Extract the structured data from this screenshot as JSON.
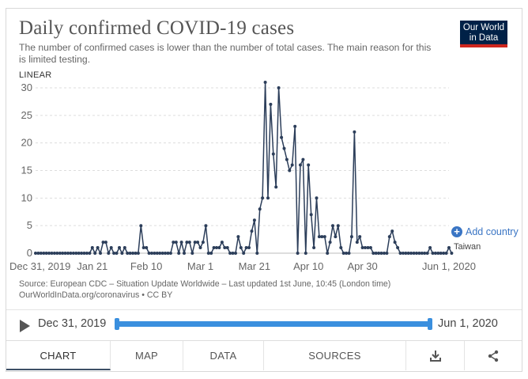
{
  "header": {
    "title": "Daily confirmed COVID-19 cases",
    "subtitle": "The number of confirmed cases is lower than the number of total cases. The main reason for this is limited testing.",
    "logo_line1": "Our World",
    "logo_line2": "in Data",
    "scale": "LINEAR"
  },
  "controls": {
    "add_country": "Add country"
  },
  "source": {
    "line1": "Source: European CDC – Situation Update Worldwide – Last updated 1st June, 10:45 (London time)",
    "line2": "OurWorldInData.org/coronavirus • CC BY"
  },
  "timeline": {
    "start": "Dec 31, 2019",
    "end": "Jun 1, 2020"
  },
  "tabs": [
    "CHART",
    "MAP",
    "DATA",
    "SOURCES"
  ],
  "colors": {
    "line": "#2c3e5a",
    "accent": "#3a8fde",
    "logo_bg": "#002147",
    "logo_bar": "#ce261e"
  },
  "chart_data": {
    "type": "line",
    "title": "Daily confirmed COVID-19 cases",
    "xlabel": "",
    "ylabel": "",
    "ylim": [
      0,
      30
    ],
    "yticks": [
      0,
      5,
      10,
      15,
      20,
      25,
      30
    ],
    "grid": true,
    "xtick_labels": [
      "Dec 31, 2019",
      "Jan 21",
      "Feb 10",
      "Mar 1",
      "Mar 21",
      "Apr 10",
      "Apr 30",
      "Jun 1, 2020"
    ],
    "xtick_days": [
      0,
      21,
      41,
      61,
      81,
      101,
      121,
      153
    ],
    "series": [
      {
        "name": "Taiwan",
        "x_start": "2019-12-31",
        "values": [
          0,
          0,
          0,
          0,
          0,
          0,
          0,
          0,
          0,
          0,
          0,
          0,
          0,
          0,
          0,
          0,
          0,
          0,
          0,
          0,
          0,
          1,
          0,
          1,
          0,
          2,
          2,
          0,
          1,
          0,
          0,
          1,
          0,
          1,
          0,
          0,
          0,
          0,
          0,
          5,
          1,
          1,
          0,
          0,
          0,
          0,
          0,
          0,
          0,
          0,
          0,
          2,
          2,
          0,
          2,
          0,
          2,
          2,
          0,
          2,
          2,
          1,
          2,
          5,
          0,
          0,
          1,
          1,
          1,
          2,
          1,
          1,
          0,
          0,
          0,
          3,
          1,
          0,
          1,
          1,
          4,
          6,
          0,
          8,
          10,
          31,
          10,
          27,
          18,
          12,
          30,
          21,
          19,
          17,
          15,
          16,
          23,
          0,
          16,
          17,
          0,
          16,
          7,
          1,
          10,
          3,
          3,
          3,
          0,
          2,
          5,
          3,
          5,
          1,
          0,
          0,
          0,
          3,
          22,
          2,
          3,
          1,
          1,
          1,
          1,
          0,
          0,
          0,
          0,
          0,
          0,
          3,
          4,
          2,
          1,
          0,
          0,
          0,
          0,
          0,
          0,
          0,
          0,
          0,
          0,
          0,
          1,
          0,
          0,
          0,
          0,
          0,
          0,
          1,
          0
        ]
      }
    ]
  }
}
